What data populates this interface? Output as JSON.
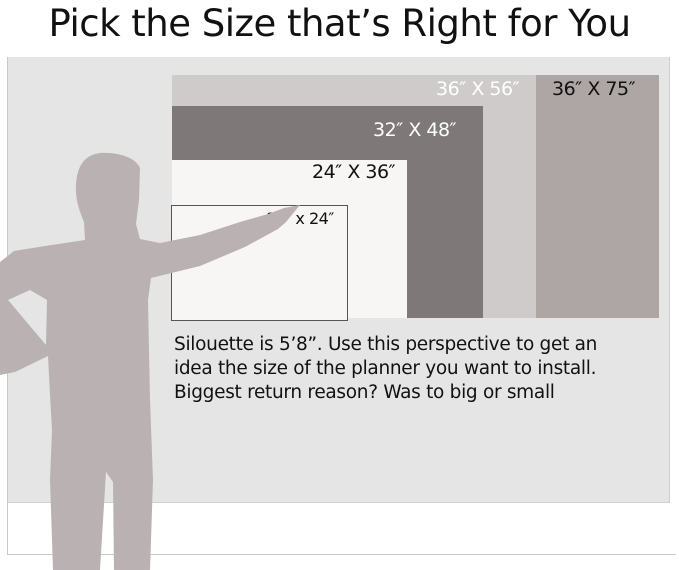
{
  "title": "Pick the Size that’s Right for You",
  "sizes": [
    {
      "label": "36″ X 75″",
      "color": "#aea5a5",
      "label_color": "#111111"
    },
    {
      "label": "36″ X 56″",
      "color": "#d0cbcb",
      "label_color": "#ffffff"
    },
    {
      "label": "32″ X 48″",
      "color": "#7e7878",
      "label_color": "#ffffff"
    },
    {
      "label": "24″ X 36″",
      "color": "#f8f6f5",
      "label_color": "#111111"
    },
    {
      "label": "19″ x 24″",
      "color": "#f8f6f5",
      "label_color": "#111111"
    }
  ],
  "silhouette_color": "#bab2b2",
  "description": [
    "Silouette is 5’8”. Use this perspective to get an",
    "idea the size of the planner you want to install.",
    "Biggest return reason? Was to big or small"
  ]
}
